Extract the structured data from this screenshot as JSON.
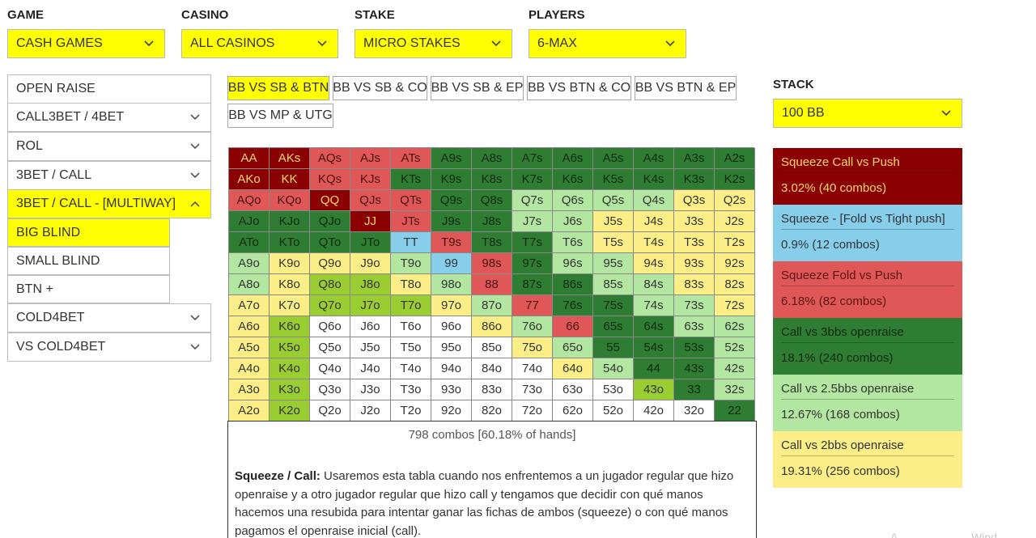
{
  "filters": [
    {
      "label": "GAME",
      "value": "CASH GAMES"
    },
    {
      "label": "CASINO",
      "value": "ALL CASINOS"
    },
    {
      "label": "STAKE",
      "value": "MICRO STAKES"
    },
    {
      "label": "PLAYERS",
      "value": "6-MAX"
    }
  ],
  "stack": {
    "label": "STACK",
    "value": "100 BB"
  },
  "menu": {
    "items": [
      {
        "label": "OPEN RAISE",
        "chevron": "none"
      },
      {
        "label": "CALL3BET / 4BET",
        "chevron": "down"
      },
      {
        "label": "ROL",
        "chevron": "down"
      },
      {
        "label": "3BET / CALL",
        "chevron": "down"
      },
      {
        "label": "3BET / CALL - [MULTIWAY]",
        "chevron": "up",
        "active": true
      }
    ],
    "subitems": [
      {
        "label": "BIG BLIND",
        "active": true
      },
      {
        "label": "SMALL BLIND",
        "active": false
      },
      {
        "label": "BTN +",
        "active": false
      }
    ],
    "items_after": [
      {
        "label": "COLD4BET",
        "chevron": "down"
      },
      {
        "label": "VS COLD4BET",
        "chevron": "down"
      }
    ]
  },
  "scenarios": [
    {
      "label": "BB VS SB & BTN",
      "active": true
    },
    {
      "label": "BB VS SB & CO",
      "active": false
    },
    {
      "label": "BB VS SB & EP",
      "active": false
    },
    {
      "label": "BB VS BTN & CO",
      "active": false
    },
    {
      "label": "BB VS BTN & EP",
      "active": false
    },
    {
      "label": "BB VS MP & UTG",
      "active": false
    }
  ],
  "colors": {
    "dr": "#8b0000",
    "rd": "#e05757",
    "dg": "#2e7d32",
    "lg": "#b3e6a0",
    "ye": "#fbee86",
    "bl": "#87ceeb",
    "lm": "#9acd32",
    "wh": "#ffffff",
    "accent": "#ffff00"
  },
  "grid": {
    "rows": [
      [
        [
          "AA",
          "dr"
        ],
        [
          "AKs",
          "dr"
        ],
        [
          "AQs",
          "rd"
        ],
        [
          "AJs",
          "rd"
        ],
        [
          "ATs",
          "rd"
        ],
        [
          "A9s",
          "dg"
        ],
        [
          "A8s",
          "dg"
        ],
        [
          "A7s",
          "dg"
        ],
        [
          "A6s",
          "dg"
        ],
        [
          "A5s",
          "dg"
        ],
        [
          "A4s",
          "dg"
        ],
        [
          "A3s",
          "dg"
        ],
        [
          "A2s",
          "dg"
        ]
      ],
      [
        [
          "AKo",
          "dr"
        ],
        [
          "KK",
          "dr"
        ],
        [
          "KQs",
          "rd"
        ],
        [
          "KJs",
          "rd"
        ],
        [
          "KTs",
          "dg"
        ],
        [
          "K9s",
          "dg"
        ],
        [
          "K8s",
          "dg"
        ],
        [
          "K7s",
          "dg"
        ],
        [
          "K6s",
          "dg"
        ],
        [
          "K5s",
          "dg"
        ],
        [
          "K4s",
          "dg"
        ],
        [
          "K3s",
          "dg"
        ],
        [
          "K2s",
          "dg"
        ]
      ],
      [
        [
          "AQo",
          "rd"
        ],
        [
          "KQo",
          "rd"
        ],
        [
          "QQ",
          "dr"
        ],
        [
          "QJs",
          "rd"
        ],
        [
          "QTs",
          "rd"
        ],
        [
          "Q9s",
          "dg"
        ],
        [
          "Q8s",
          "dg"
        ],
        [
          "Q7s",
          "lg"
        ],
        [
          "Q6s",
          "lg"
        ],
        [
          "Q5s",
          "lg"
        ],
        [
          "Q4s",
          "lg"
        ],
        [
          "Q3s",
          "ye"
        ],
        [
          "Q2s",
          "ye"
        ]
      ],
      [
        [
          "AJo",
          "dg"
        ],
        [
          "KJo",
          "dg"
        ],
        [
          "QJo",
          "dg"
        ],
        [
          "JJ",
          "dr"
        ],
        [
          "JTs",
          "rd"
        ],
        [
          "J9s",
          "dg"
        ],
        [
          "J8s",
          "dg"
        ],
        [
          "J7s",
          "lg"
        ],
        [
          "J6s",
          "lg"
        ],
        [
          "J5s",
          "ye"
        ],
        [
          "J4s",
          "ye"
        ],
        [
          "J3s",
          "ye"
        ],
        [
          "J2s",
          "ye"
        ]
      ],
      [
        [
          "ATo",
          "dg"
        ],
        [
          "KTo",
          "dg"
        ],
        [
          "QTo",
          "dg"
        ],
        [
          "JTo",
          "dg"
        ],
        [
          "TT",
          "bl"
        ],
        [
          "T9s",
          "rd"
        ],
        [
          "T8s",
          "dg"
        ],
        [
          "T7s",
          "dg"
        ],
        [
          "T6s",
          "lg"
        ],
        [
          "T5s",
          "ye"
        ],
        [
          "T4s",
          "ye"
        ],
        [
          "T3s",
          "ye"
        ],
        [
          "T2s",
          "ye"
        ]
      ],
      [
        [
          "A9o",
          "lg"
        ],
        [
          "K9o",
          "ye"
        ],
        [
          "Q9o",
          "ye"
        ],
        [
          "J9o",
          "ye"
        ],
        [
          "T9o",
          "lg"
        ],
        [
          "99",
          "bl"
        ],
        [
          "98s",
          "rd"
        ],
        [
          "97s",
          "dg"
        ],
        [
          "96s",
          "lg"
        ],
        [
          "95s",
          "lg"
        ],
        [
          "94s",
          "ye"
        ],
        [
          "93s",
          "ye"
        ],
        [
          "92s",
          "ye"
        ]
      ],
      [
        [
          "A8o",
          "lg"
        ],
        [
          "K8o",
          "ye"
        ],
        [
          "Q8o",
          "lm"
        ],
        [
          "J8o",
          "lm"
        ],
        [
          "T8o",
          "ye"
        ],
        [
          "98o",
          "lg"
        ],
        [
          "88",
          "rd"
        ],
        [
          "87s",
          "dg"
        ],
        [
          "86s",
          "dg"
        ],
        [
          "85s",
          "lg"
        ],
        [
          "84s",
          "lg"
        ],
        [
          "83s",
          "ye"
        ],
        [
          "82s",
          "ye"
        ]
      ],
      [
        [
          "A7o",
          "ye"
        ],
        [
          "K7o",
          "ye"
        ],
        [
          "Q7o",
          "lm"
        ],
        [
          "J7o",
          "lm"
        ],
        [
          "T7o",
          "lm"
        ],
        [
          "97o",
          "ye"
        ],
        [
          "87o",
          "lg"
        ],
        [
          "77",
          "rd"
        ],
        [
          "76s",
          "dg"
        ],
        [
          "75s",
          "dg"
        ],
        [
          "74s",
          "lg"
        ],
        [
          "73s",
          "lg"
        ],
        [
          "72s",
          "ye"
        ]
      ],
      [
        [
          "A6o",
          "ye"
        ],
        [
          "K6o",
          "lm"
        ],
        [
          "Q6o",
          "wh"
        ],
        [
          "J6o",
          "wh"
        ],
        [
          "T6o",
          "wh"
        ],
        [
          "96o",
          "wh"
        ],
        [
          "86o",
          "ye"
        ],
        [
          "76o",
          "lg"
        ],
        [
          "66",
          "rd"
        ],
        [
          "65s",
          "dg"
        ],
        [
          "64s",
          "dg"
        ],
        [
          "63s",
          "lg"
        ],
        [
          "62s",
          "lg"
        ]
      ],
      [
        [
          "A5o",
          "ye"
        ],
        [
          "K5o",
          "lm"
        ],
        [
          "Q5o",
          "wh"
        ],
        [
          "J5o",
          "wh"
        ],
        [
          "T5o",
          "wh"
        ],
        [
          "95o",
          "wh"
        ],
        [
          "85o",
          "wh"
        ],
        [
          "75o",
          "ye"
        ],
        [
          "65o",
          "lg"
        ],
        [
          "55",
          "dg"
        ],
        [
          "54s",
          "dg"
        ],
        [
          "53s",
          "dg"
        ],
        [
          "52s",
          "lg"
        ]
      ],
      [
        [
          "A4o",
          "ye"
        ],
        [
          "K4o",
          "lm"
        ],
        [
          "Q4o",
          "wh"
        ],
        [
          "J4o",
          "wh"
        ],
        [
          "T4o",
          "wh"
        ],
        [
          "94o",
          "wh"
        ],
        [
          "84o",
          "wh"
        ],
        [
          "74o",
          "wh"
        ],
        [
          "64o",
          "ye"
        ],
        [
          "54o",
          "lg"
        ],
        [
          "44",
          "dg"
        ],
        [
          "43s",
          "dg"
        ],
        [
          "42s",
          "lg"
        ]
      ],
      [
        [
          "A3o",
          "ye"
        ],
        [
          "K3o",
          "lm"
        ],
        [
          "Q3o",
          "wh"
        ],
        [
          "J3o",
          "wh"
        ],
        [
          "T3o",
          "wh"
        ],
        [
          "93o",
          "wh"
        ],
        [
          "83o",
          "wh"
        ],
        [
          "73o",
          "wh"
        ],
        [
          "63o",
          "wh"
        ],
        [
          "53o",
          "wh"
        ],
        [
          "43o",
          "lm"
        ],
        [
          "33",
          "dg"
        ],
        [
          "32s",
          "lg"
        ]
      ],
      [
        [
          "A2o",
          "ye"
        ],
        [
          "K2o",
          "lm"
        ],
        [
          "Q2o",
          "wh"
        ],
        [
          "J2o",
          "wh"
        ],
        [
          "T2o",
          "wh"
        ],
        [
          "92o",
          "wh"
        ],
        [
          "82o",
          "wh"
        ],
        [
          "72o",
          "wh"
        ],
        [
          "62o",
          "wh"
        ],
        [
          "52o",
          "wh"
        ],
        [
          "42o",
          "wh"
        ],
        [
          "32o",
          "wh"
        ],
        [
          "22",
          "dg"
        ]
      ]
    ]
  },
  "summary": "798 combos [60.18% of hands]",
  "description": {
    "title": "Squeeze / Call:",
    "text": " Usaremos esta tabla cuando nos enfrentemos a un jugador regular que hizo openraise y a otro jugador regular que hizo call y tengamos que decidir con qué manos hacemos una resubida para intentar ganar las fichas de ambos (squeeze) o con qué manos pagamos el openraise inicial (call)."
  },
  "legend": [
    {
      "title": "Squeeze Call vs Push",
      "stat": "3.02%  (40 combos)",
      "color": "dr"
    },
    {
      "title": "Squeeze - [Fold vs Tight push]",
      "stat": "0.9%  (12 combos)",
      "color": "bl"
    },
    {
      "title": "Squeeze Fold vs Push",
      "stat": "6.18%  (82 combos)",
      "color": "rd"
    },
    {
      "title": "Call vs 3bbs openraise",
      "stat": "18.1%  (240 combos)",
      "color": "dg"
    },
    {
      "title": "Call vs 2.5bbs openraise",
      "stat": "12.67%  (168 combos)",
      "color": "lg"
    },
    {
      "title": "Call vs 2bbs openraise",
      "stat": "19.31%  (256 combos)",
      "color": "ye"
    }
  ],
  "watermark": [
    "A",
    "Wind"
  ]
}
